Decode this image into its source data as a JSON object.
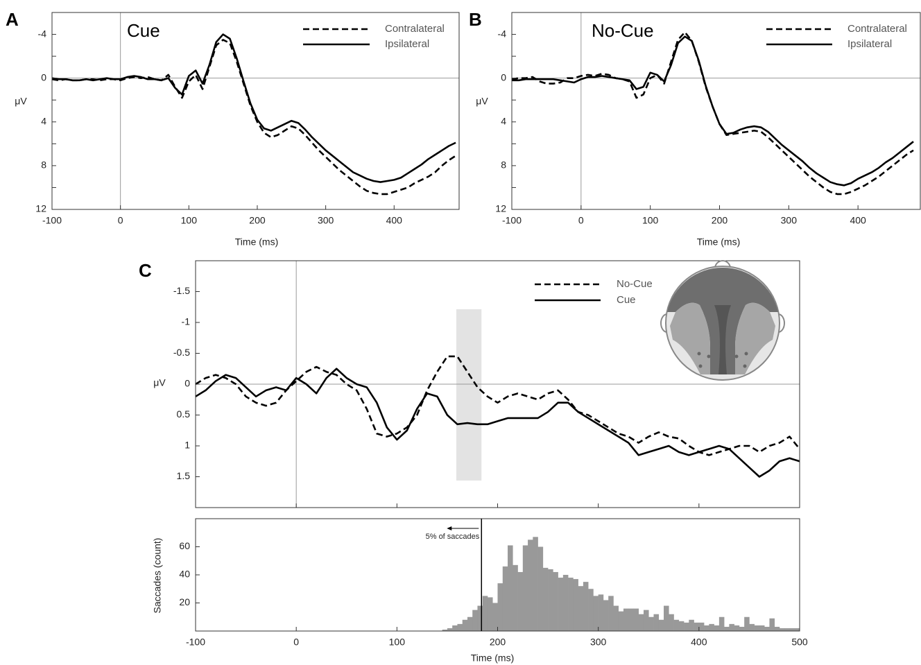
{
  "chart_data": [
    {
      "type": "line",
      "panel_label": "A",
      "title": "Cue",
      "ylabel": "μV",
      "xlabel": "Time (ms)",
      "xlim": [
        -100,
        495
      ],
      "ylim": [
        -6,
        12
      ],
      "y_inverted": true,
      "xticks": [
        -100,
        0,
        100,
        200,
        300,
        400
      ],
      "yticks": [
        -4,
        0,
        4,
        8,
        12
      ],
      "yminorticks": [
        -2,
        2,
        6,
        10
      ],
      "zero_line": true,
      "onset_line": true,
      "x": [
        -100,
        -90,
        -80,
        -70,
        -60,
        -50,
        -40,
        -30,
        -20,
        -10,
        0,
        10,
        20,
        30,
        40,
        50,
        60,
        70,
        80,
        90,
        100,
        110,
        120,
        130,
        140,
        150,
        160,
        170,
        180,
        190,
        200,
        210,
        220,
        230,
        240,
        250,
        260,
        270,
        280,
        290,
        300,
        310,
        320,
        330,
        340,
        350,
        360,
        370,
        380,
        390,
        400,
        410,
        420,
        430,
        440,
        450,
        460,
        470,
        480,
        490
      ],
      "series": [
        {
          "name": "Contralateral",
          "color": "#000000",
          "dashed": true,
          "values": [
            0.1,
            0.2,
            0.1,
            0.2,
            0.2,
            0.1,
            0.1,
            0.2,
            0.1,
            0.1,
            0.2,
            0.0,
            -0.1,
            0.0,
            -0.1,
            0.1,
            0.2,
            -0.3,
            0.8,
            1.8,
            0.3,
            -0.3,
            1.0,
            -1.0,
            -3.0,
            -3.5,
            -3.2,
            -1.5,
            0.5,
            2.5,
            4.0,
            5.0,
            5.4,
            5.2,
            4.8,
            4.4,
            4.6,
            5.2,
            5.9,
            6.6,
            7.2,
            7.8,
            8.4,
            8.9,
            9.4,
            9.9,
            10.3,
            10.5,
            10.6,
            10.6,
            10.4,
            10.2,
            10.0,
            9.6,
            9.3,
            9.0,
            8.6,
            8.0,
            7.5,
            7.1
          ]
        },
        {
          "name": "Ipsilateral",
          "color": "#000000",
          "dashed": false,
          "values": [
            0.0,
            0.1,
            0.1,
            0.2,
            0.2,
            0.1,
            0.2,
            0.1,
            0.0,
            0.1,
            0.1,
            -0.1,
            -0.2,
            -0.1,
            0.1,
            0.1,
            0.2,
            0.0,
            0.9,
            1.5,
            -0.2,
            -0.7,
            0.5,
            -1.2,
            -3.3,
            -4.0,
            -3.6,
            -1.8,
            0.3,
            2.3,
            3.8,
            4.6,
            4.8,
            4.5,
            4.2,
            3.9,
            4.1,
            4.7,
            5.4,
            6.0,
            6.6,
            7.1,
            7.6,
            8.1,
            8.6,
            8.9,
            9.2,
            9.4,
            9.5,
            9.4,
            9.3,
            9.1,
            8.7,
            8.3,
            7.9,
            7.4,
            7.0,
            6.6,
            6.2,
            5.9
          ]
        }
      ]
    },
    {
      "type": "line",
      "panel_label": "B",
      "title": "No-Cue",
      "ylabel": "μV",
      "xlabel": "Time (ms)",
      "xlim": [
        -100,
        490
      ],
      "ylim": [
        -6,
        12
      ],
      "y_inverted": true,
      "xticks": [
        -100,
        0,
        100,
        200,
        300,
        400
      ],
      "yticks": [
        -4,
        0,
        4,
        8,
        12
      ],
      "yminorticks": [
        -2,
        2,
        6,
        10
      ],
      "zero_line": true,
      "onset_line": true,
      "x": [
        -100,
        -90,
        -80,
        -70,
        -60,
        -50,
        -40,
        -30,
        -20,
        -10,
        0,
        10,
        20,
        30,
        40,
        50,
        60,
        70,
        80,
        90,
        100,
        110,
        120,
        130,
        140,
        150,
        160,
        170,
        180,
        190,
        200,
        210,
        220,
        230,
        240,
        250,
        260,
        270,
        280,
        290,
        300,
        310,
        320,
        330,
        340,
        350,
        360,
        370,
        380,
        390,
        400,
        410,
        420,
        430,
        440,
        450,
        460,
        470,
        480
      ],
      "series": [
        {
          "name": "Contralateral",
          "color": "#000000",
          "dashed": true,
          "values": [
            0.1,
            0.0,
            0.0,
            -0.1,
            0.3,
            0.5,
            0.5,
            0.4,
            0.0,
            0.0,
            -0.2,
            -0.3,
            -0.2,
            -0.4,
            -0.3,
            0.0,
            0.1,
            0.3,
            1.8,
            1.5,
            0.0,
            -0.3,
            0.5,
            -1.5,
            -3.5,
            -4.2,
            -3.4,
            -1.5,
            0.8,
            2.6,
            4.2,
            5.2,
            5.1,
            5.0,
            4.9,
            4.8,
            4.9,
            5.4,
            6.0,
            6.6,
            7.2,
            7.8,
            8.4,
            9.0,
            9.5,
            10.0,
            10.4,
            10.6,
            10.6,
            10.4,
            10.1,
            9.8,
            9.4,
            9.0,
            8.5,
            8.0,
            7.5,
            7.0,
            6.6
          ]
        },
        {
          "name": "Ipsilateral",
          "color": "#000000",
          "dashed": false,
          "values": [
            0.2,
            0.2,
            0.1,
            0.1,
            0.1,
            0.1,
            0.1,
            0.2,
            0.3,
            0.4,
            0.1,
            -0.1,
            -0.1,
            -0.2,
            -0.1,
            0.0,
            0.1,
            0.2,
            1.0,
            0.8,
            -0.5,
            -0.3,
            0.3,
            -1.2,
            -3.2,
            -3.8,
            -3.4,
            -1.6,
            0.7,
            2.6,
            4.2,
            5.1,
            5.0,
            4.7,
            4.5,
            4.4,
            4.5,
            4.9,
            5.5,
            6.1,
            6.6,
            7.1,
            7.6,
            8.2,
            8.7,
            9.1,
            9.5,
            9.7,
            9.8,
            9.6,
            9.2,
            8.9,
            8.6,
            8.2,
            7.7,
            7.3,
            6.8,
            6.3,
            5.8
          ]
        }
      ]
    },
    {
      "type": "line",
      "panel_label": "C",
      "ylabel": "μV",
      "xlim": [
        -100,
        500
      ],
      "ylim": [
        -2,
        2
      ],
      "y_inverted": true,
      "xticks": [
        -100,
        0,
        100,
        200,
        300,
        400,
        500
      ],
      "xtick_labels": false,
      "yticks": [
        -1.5,
        -1.0,
        -0.5,
        0,
        0.5,
        1.0,
        1.5
      ],
      "zero_line": true,
      "onset_line": true,
      "shaded_region": [
        159,
        184
      ],
      "x": [
        -100,
        -90,
        -80,
        -70,
        -60,
        -50,
        -40,
        -30,
        -20,
        -10,
        0,
        10,
        20,
        30,
        40,
        50,
        60,
        70,
        80,
        90,
        100,
        110,
        120,
        130,
        140,
        150,
        160,
        170,
        180,
        190,
        200,
        210,
        220,
        230,
        240,
        250,
        260,
        270,
        280,
        290,
        300,
        310,
        320,
        330,
        340,
        350,
        360,
        370,
        380,
        390,
        400,
        410,
        420,
        430,
        440,
        450,
        460,
        470,
        480,
        490,
        500
      ],
      "series": [
        {
          "name": "No-Cue",
          "color": "#000000",
          "dashed": true,
          "values": [
            0.0,
            -0.1,
            -0.15,
            -0.1,
            0.0,
            0.2,
            0.3,
            0.35,
            0.3,
            0.1,
            -0.05,
            -0.2,
            -0.28,
            -0.2,
            -0.15,
            0.0,
            0.1,
            0.4,
            0.8,
            0.85,
            0.8,
            0.7,
            0.5,
            0.1,
            -0.2,
            -0.45,
            -0.45,
            -0.2,
            0.05,
            0.2,
            0.3,
            0.2,
            0.15,
            0.2,
            0.25,
            0.15,
            0.1,
            0.25,
            0.45,
            0.5,
            0.6,
            0.7,
            0.8,
            0.85,
            0.95,
            0.85,
            0.78,
            0.85,
            0.88,
            1.0,
            1.1,
            1.15,
            1.1,
            1.05,
            1.0,
            1.0,
            1.1,
            1.0,
            0.95,
            0.85,
            1.05
          ]
        },
        {
          "name": "Cue",
          "color": "#000000",
          "dashed": false,
          "values": [
            0.2,
            0.1,
            -0.05,
            -0.15,
            -0.1,
            0.05,
            0.2,
            0.1,
            0.05,
            0.1,
            -0.1,
            0.0,
            0.15,
            -0.1,
            -0.25,
            -0.1,
            0.0,
            0.05,
            0.3,
            0.7,
            0.9,
            0.75,
            0.4,
            0.15,
            0.2,
            0.5,
            0.65,
            0.63,
            0.65,
            0.65,
            0.6,
            0.55,
            0.55,
            0.55,
            0.55,
            0.45,
            0.3,
            0.3,
            0.45,
            0.55,
            0.65,
            0.75,
            0.85,
            0.95,
            1.15,
            1.1,
            1.05,
            1.0,
            1.1,
            1.15,
            1.1,
            1.05,
            1.0,
            1.05,
            1.2,
            1.35,
            1.5,
            1.4,
            1.25,
            1.2,
            1.25
          ]
        }
      ]
    },
    {
      "type": "histogram",
      "ylabel": "Saccades (count)",
      "xlabel": "Time (ms)",
      "color": "#999999",
      "xlim": [
        -100,
        500
      ],
      "ylim": [
        0,
        80
      ],
      "xticks": [
        -100,
        0,
        100,
        200,
        300,
        400,
        500
      ],
      "yticks": [
        20,
        40,
        60
      ],
      "annotation": {
        "text": "5% of saccades",
        "x": 184
      },
      "bins": [
        145,
        150,
        155,
        160,
        165,
        170,
        175,
        180,
        185,
        190,
        195,
        200,
        205,
        210,
        215,
        220,
        225,
        230,
        235,
        240,
        245,
        250,
        255,
        260,
        265,
        270,
        275,
        280,
        285,
        290,
        295,
        300,
        305,
        310,
        315,
        320,
        325,
        330,
        335,
        340,
        345,
        350,
        355,
        360,
        365,
        370,
        375,
        380,
        385,
        390,
        395,
        400,
        405,
        410,
        415,
        420,
        425,
        430,
        435,
        440,
        445,
        450,
        455,
        460,
        465,
        470,
        475,
        480,
        485,
        490,
        495,
        500
      ],
      "values": [
        1,
        2,
        4,
        5,
        8,
        10,
        15,
        18,
        25,
        24,
        20,
        34,
        46,
        61,
        47,
        42,
        61,
        65,
        67,
        60,
        45,
        44,
        42,
        38,
        40,
        38,
        37,
        32,
        35,
        30,
        25,
        26,
        22,
        25,
        18,
        14,
        16,
        16,
        16,
        12,
        15,
        10,
        12,
        8,
        18,
        12,
        8,
        7,
        6,
        8,
        6,
        6,
        4,
        5,
        4,
        10,
        3,
        5,
        4,
        3,
        10,
        5,
        4,
        4,
        3,
        9,
        3,
        2,
        2,
        2,
        2
      ]
    }
  ]
}
